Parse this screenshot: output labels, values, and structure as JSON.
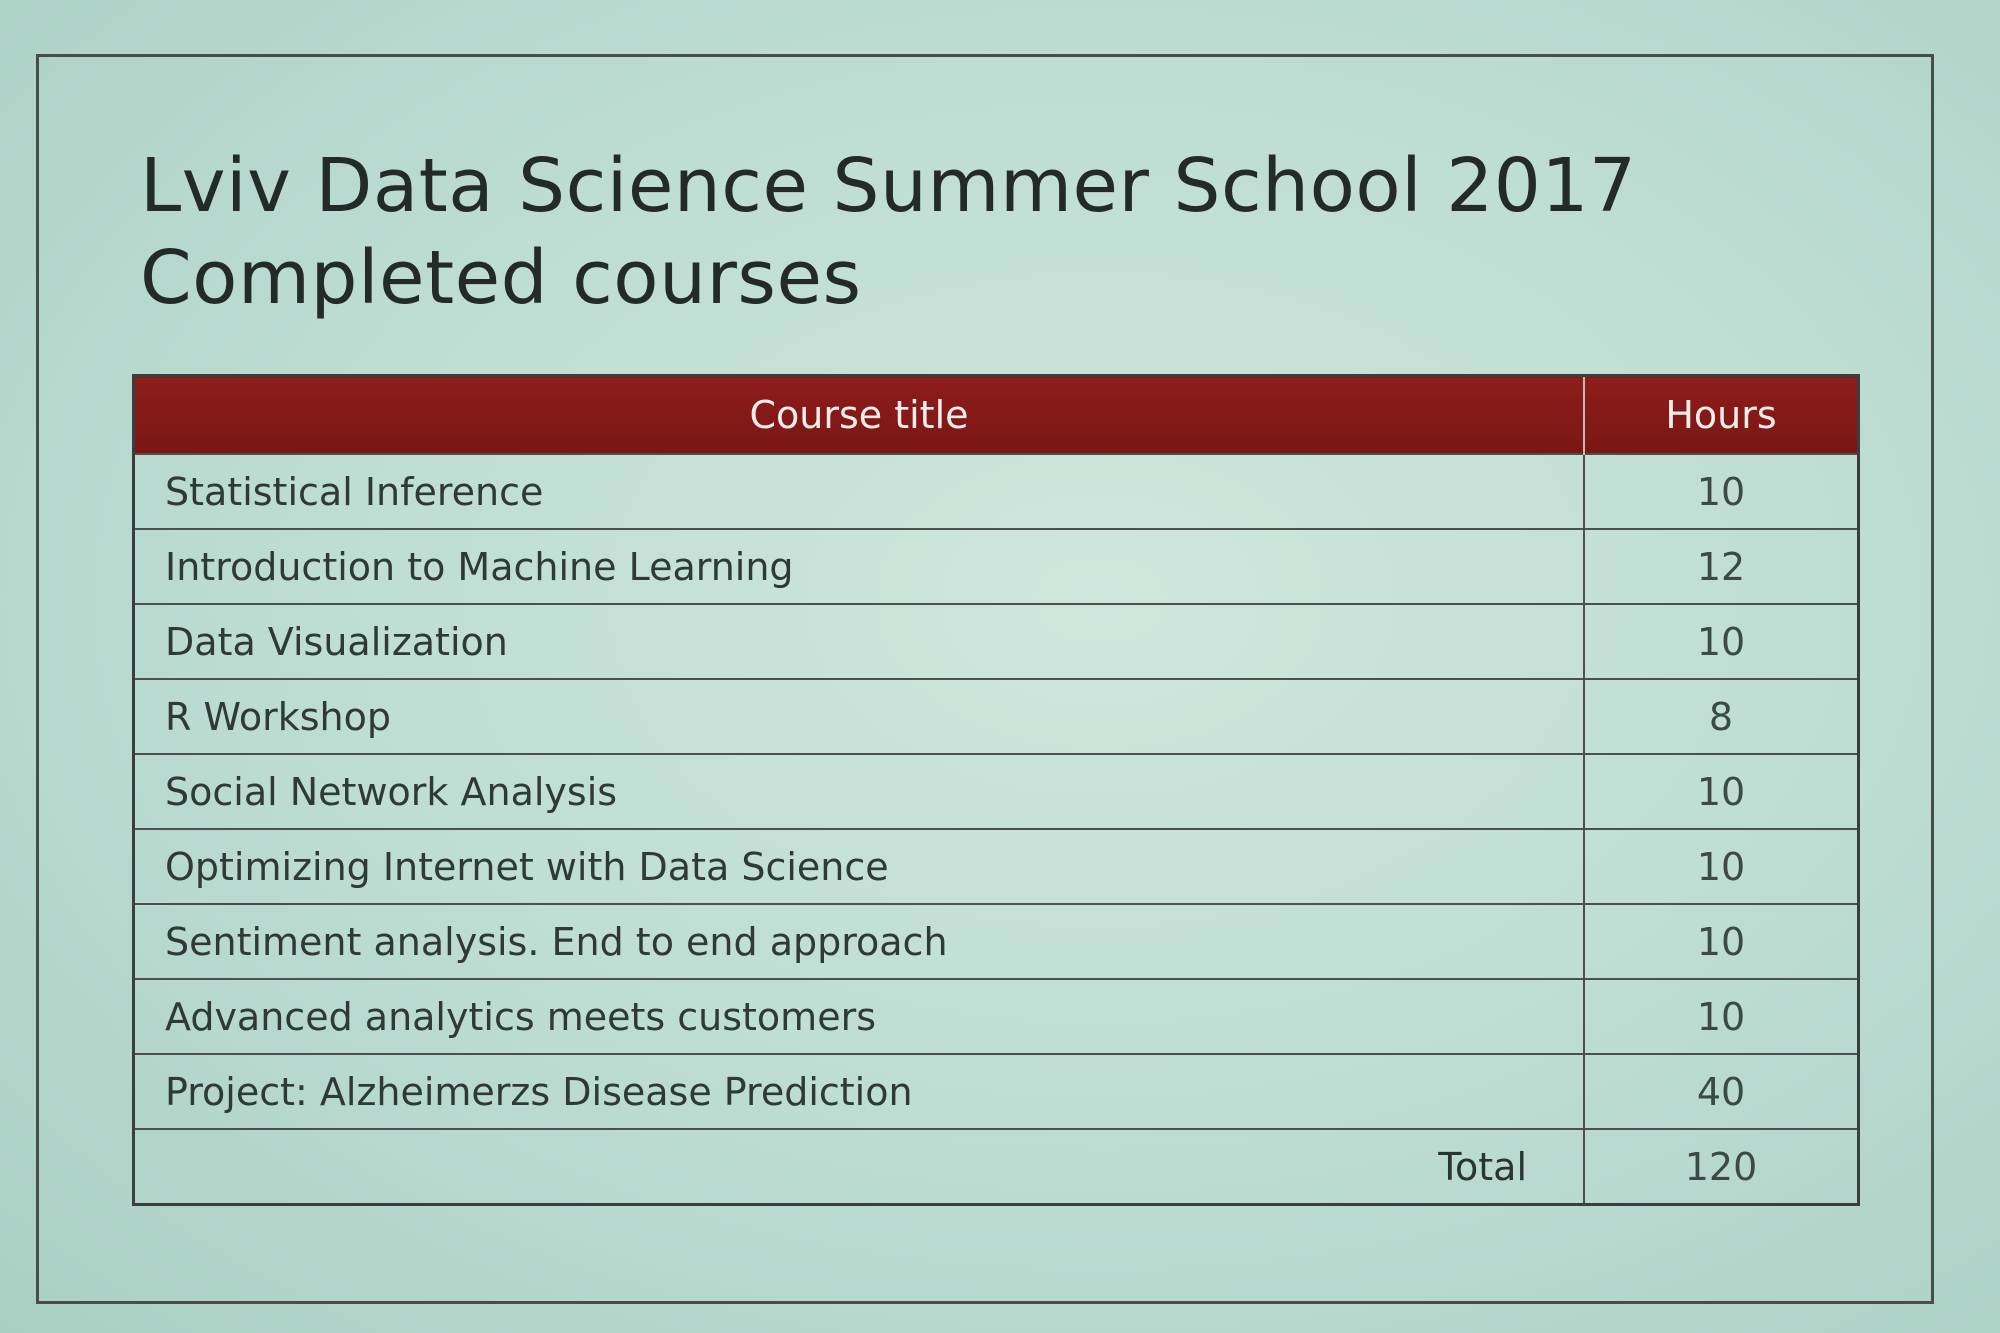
{
  "slide": {
    "title_line1": "Lviv Data Science Summer School 2017",
    "title_line2": "Completed courses"
  },
  "table": {
    "headers": {
      "course_title": "Course title",
      "hours": "Hours"
    },
    "rows": [
      {
        "title": "Statistical Inference",
        "hours": "10"
      },
      {
        "title": "Introduction to Machine Learning",
        "hours": "12"
      },
      {
        "title": "Data Visualization",
        "hours": "10"
      },
      {
        "title": "R Workshop",
        "hours": "8"
      },
      {
        "title": "Social Network Analysis",
        "hours": "10"
      },
      {
        "title": "Optimizing Internet with Data Science",
        "hours": "10"
      },
      {
        "title": "Sentiment analysis. End to end approach",
        "hours": "10"
      },
      {
        "title": "Advanced analytics meets customers",
        "hours": "10"
      },
      {
        "title": "Project: Alzheimerzs Disease Prediction",
        "hours": "40"
      }
    ],
    "total": {
      "label": "Total",
      "hours": "120"
    }
  },
  "colors": {
    "header_background": "#861a18",
    "header_text": "#f4ecea",
    "slide_background": "#c2e0d6",
    "text": "#2f3a36"
  }
}
